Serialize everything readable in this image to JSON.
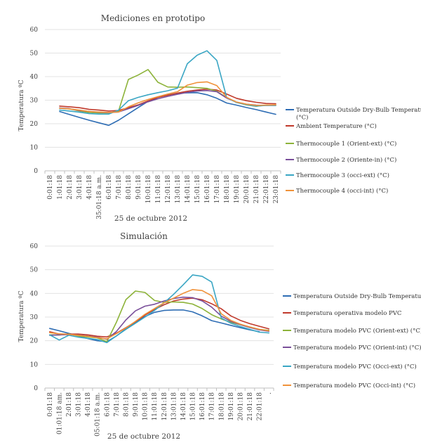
{
  "chart_data": [
    {
      "type": "line",
      "title": "Mediciones en prototipo",
      "ylabel": "Temperatura ºC",
      "xlabel": "25 de octubre 2012",
      "ylim": [
        0,
        60
      ],
      "yticks": [
        0,
        10,
        20,
        30,
        40,
        50,
        60
      ],
      "grid": true,
      "legend_position": "right",
      "categories": [
        "0:01:18",
        "1:01:18",
        "2:01:18",
        "3:01:18",
        "4:01:18",
        "35:01:18 a.m.",
        "6:01:18",
        "7:01:18",
        "8:01:18",
        "9:01:18",
        "10:01:18",
        "11:01:18",
        "12:01:18",
        "13:01:18",
        "14:01:18",
        "15:01:18",
        "16:01:18",
        "17:01:18",
        "18:01:18",
        "19:01:18",
        "20:01:18",
        "21:01:18",
        "22:01:18",
        "23:01:18"
      ],
      "series": [
        {
          "name": "Temperatura Outside Dry-Bulb Temperature (°C)",
          "color": "#2e6db4",
          "values": [
            null,
            25.2,
            23.9,
            22.7,
            21.5,
            20.4,
            19.3,
            21.5,
            24.2,
            26.9,
            29.5,
            31.2,
            32.2,
            32.9,
            33.1,
            33.2,
            32.3,
            30.8,
            28.8,
            27.9,
            26.9,
            26.0,
            25.0,
            24.0
          ]
        },
        {
          "name": "Ambient Temperature (°C)",
          "color": "#c0392b",
          "values": [
            null,
            27.5,
            27.2,
            26.8,
            26.1,
            25.8,
            25.4,
            25.6,
            26.8,
            28.0,
            29.7,
            31.2,
            32.1,
            33.0,
            33.8,
            34.3,
            34.7,
            34.3,
            32.6,
            30.8,
            29.8,
            29.1,
            28.6,
            28.5
          ]
        },
        {
          "name": "Thermocouple 1 (Orient-ext) (°C)",
          "color": "#8db33a",
          "values": [
            null,
            26.6,
            26.3,
            25.4,
            24.8,
            24.6,
            24.6,
            25.4,
            38.8,
            40.7,
            43.0,
            37.6,
            35.6,
            35.5,
            35.6,
            35.3,
            35.0,
            33.8,
            31.0,
            29.1,
            28.0,
            27.4,
            27.9,
            28.0
          ]
        },
        {
          "name": "Thermocouple 2 (Oriente-in) (°C)",
          "color": "#7a4f9a",
          "values": [
            null,
            26.7,
            26.4,
            25.6,
            25.2,
            24.9,
            24.7,
            25.0,
            26.4,
            27.8,
            29.3,
            30.6,
            31.6,
            32.5,
            33.3,
            33.9,
            34.1,
            33.6,
            30.9,
            29.2,
            28.3,
            27.9,
            27.8,
            27.8
          ]
        },
        {
          "name": "Thermocouple 3 (occi-ext) (°C)",
          "color": "#3aa6c4",
          "values": [
            null,
            25.8,
            25.4,
            24.9,
            24.3,
            24.1,
            24.1,
            25.8,
            29.8,
            31.2,
            32.3,
            33.2,
            34.0,
            35.1,
            45.5,
            49.1,
            51.0,
            46.9,
            31.2,
            29.0,
            28.1,
            27.5,
            27.8,
            27.8
          ]
        },
        {
          "name": "Thermocouple 4 (occi-int) (°C)",
          "color": "#f0923a",
          "values": [
            null,
            26.6,
            26.3,
            25.8,
            25.2,
            25.0,
            24.8,
            25.0,
            27.2,
            28.9,
            30.3,
            31.5,
            32.6,
            33.6,
            36.4,
            37.5,
            37.8,
            36.2,
            31.2,
            29.2,
            28.3,
            27.8,
            27.9,
            28.0
          ]
        }
      ]
    },
    {
      "type": "line",
      "title": "Simulación",
      "ylabel": "Temperatura ºC",
      "xlabel": "25 de octubre 2012",
      "ylim": [
        0,
        60
      ],
      "yticks": [
        0,
        10,
        20,
        30,
        40,
        50,
        60
      ],
      "grid": true,
      "legend_position": "right",
      "categories": [
        "0:01:18",
        "01:01:18 am.",
        "2:01:18",
        "3:01:18",
        "4:01:18",
        "05:01:18 a.m.",
        "6:01:18",
        "7:01:18",
        "8:01:18",
        "9:01:18",
        "10:01:18",
        "11:01:18",
        "12:01:18",
        "13:01:18",
        "14:01:18",
        "15:01:18",
        "16:01:18",
        "17:01:18",
        "18:01:18",
        "19:01:18",
        "20:01:18",
        "21:01:18",
        "22:01:18",
        "."
      ],
      "series": [
        {
          "name": "Temperatura Outside Dry-Bulb Temperature (°C)",
          "color": "#2e6db4",
          "values": [
            25.2,
            24.2,
            23.1,
            22.0,
            20.9,
            20.0,
            19.6,
            22.0,
            25.0,
            27.8,
            30.2,
            32.0,
            32.8,
            33.0,
            33.0,
            32.2,
            30.5,
            28.5,
            27.5,
            26.5,
            25.5,
            24.6,
            23.8,
            null
          ]
        },
        {
          "name": "Temperatura operativa modelo PVC",
          "color": "#c0392b",
          "values": [
            23.8,
            22.8,
            22.8,
            22.8,
            22.5,
            21.9,
            21.6,
            23.2,
            25.5,
            28.0,
            30.8,
            33.2,
            35.2,
            36.8,
            37.6,
            38.0,
            37.3,
            35.6,
            33.5,
            30.5,
            28.6,
            27.2,
            26.1,
            25.0
          ]
        },
        {
          "name": "Temperatura modelo PVC (Orient-ext) (°C)",
          "color": "#8db33a",
          "values": [
            22.5,
            22.4,
            22.8,
            22.0,
            21.6,
            21.2,
            19.6,
            27.8,
            37.4,
            41.0,
            40.4,
            37.0,
            36.2,
            36.4,
            36.2,
            35.5,
            33.6,
            31.0,
            29.2,
            27.8,
            26.8,
            25.8,
            24.8,
            24.4
          ]
        },
        {
          "name": "Temperatura modelo PVC (Orient-int) (°C)",
          "color": "#7a4f9a",
          "values": [
            22.3,
            22.5,
            22.6,
            22.4,
            22.0,
            21.5,
            20.6,
            23.9,
            28.8,
            32.6,
            34.6,
            35.4,
            36.8,
            37.8,
            38.4,
            38.2,
            36.8,
            34.2,
            30.4,
            28.2,
            26.8,
            25.6,
            24.6,
            24.0
          ]
        },
        {
          "name": "Temperatura modelo PVC (Occi-ext) (°C)",
          "color": "#3aa6c4",
          "values": [
            22.5,
            20.3,
            22.3,
            21.5,
            21.0,
            20.5,
            19.2,
            22.0,
            24.8,
            27.4,
            30.0,
            32.8,
            36.0,
            39.6,
            43.6,
            47.8,
            47.2,
            44.8,
            29.6,
            27.4,
            26.0,
            24.8,
            23.6,
            23.3
          ]
        },
        {
          "name": "Temperatura modelo PVC (Occi-int) (°C)",
          "color": "#f0923a",
          "values": [
            23.4,
            22.9,
            22.7,
            22.3,
            21.9,
            21.3,
            20.8,
            23.0,
            25.4,
            28.2,
            31.2,
            33.6,
            36.0,
            38.0,
            40.0,
            41.6,
            41.2,
            39.0,
            31.4,
            28.6,
            27.0,
            25.8,
            24.8,
            24.2
          ]
        }
      ]
    }
  ]
}
